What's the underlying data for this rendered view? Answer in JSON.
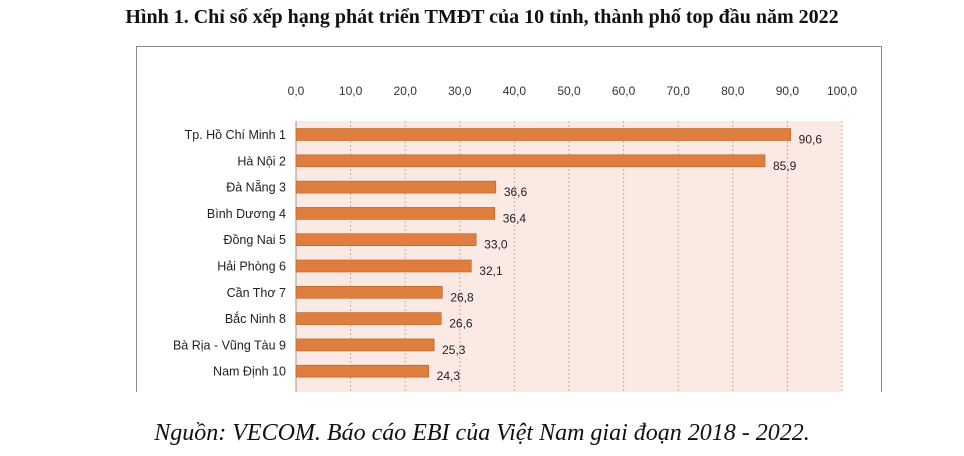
{
  "figure": {
    "title": "Hình 1. Chỉ số xếp hạng phát triển TMĐT của 10 tỉnh, thành phố top đầu năm 2022",
    "source": "Nguồn: VECOM. Báo cáo EBI của Việt Nam giai đoạn 2018 - 2022."
  },
  "chart_data": {
    "type": "bar",
    "orientation": "horizontal",
    "title": "",
    "xlabel": "",
    "ylabel": "",
    "xlim": [
      0,
      100
    ],
    "tick_values": [
      0,
      10,
      20,
      30,
      40,
      50,
      60,
      70,
      80,
      90,
      100
    ],
    "tick_labels": [
      "0,0",
      "10,0",
      "20,0",
      "30,0",
      "40,0",
      "50,0",
      "60,0",
      "70,0",
      "80,0",
      "90,0",
      "100,0"
    ],
    "axis_position": "top",
    "grid": true,
    "categories": [
      "Tp. Hồ Chí Minh 1",
      "Hà Nội 2",
      "Đà Nẵng 3",
      "Bình Dương 4",
      "Đồng Nai 5",
      "Hải Phòng 6",
      "Cần Thơ 7",
      "Bắc Ninh 8",
      "Bà Rịa - Vũng Tàu 9",
      "Nam Định 10"
    ],
    "values": [
      90.6,
      85.9,
      36.6,
      36.4,
      33.0,
      32.1,
      26.8,
      26.6,
      25.3,
      24.3
    ],
    "value_labels": [
      "90,6",
      "85,9",
      "36,6",
      "36,4",
      "33,0",
      "32,1",
      "26,8",
      "26,6",
      "25,3",
      "24,3"
    ],
    "colors": {
      "bar": "#e07e3f",
      "bar_edge": "#b85f24",
      "plot_bg": "#fbe9e3",
      "grid": "#d9a79a"
    }
  }
}
